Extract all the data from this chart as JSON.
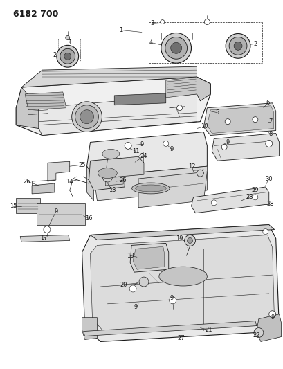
{
  "title_code": "6182 700",
  "bg_color": "#ffffff",
  "line_color": "#1a1a1a",
  "fig_width": 4.1,
  "fig_height": 5.33,
  "dpi": 100,
  "gray_fill": "#e0e0e0",
  "dark_fill": "#b0b0b0",
  "white_fill": "#ffffff",
  "label_fontsize": 6.0,
  "title_fontsize": 9
}
